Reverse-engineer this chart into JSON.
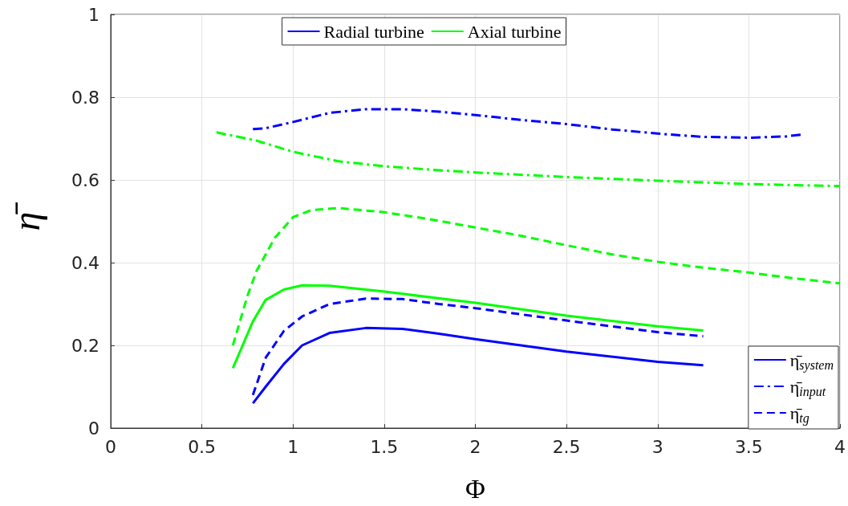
{
  "chart_data": {
    "type": "line",
    "xlabel": "Φ",
    "ylabel": "η̄",
    "xlim": [
      0,
      4
    ],
    "xticks": [
      0,
      0.5,
      1,
      1.5,
      2,
      2.5,
      3,
      3.5,
      4
    ],
    "ylim": [
      0,
      1
    ],
    "yticks": [
      0,
      0.2,
      0.4,
      0.6,
      0.8,
      1
    ],
    "grid": true,
    "marker": "none",
    "legend": [
      "top",
      "bottom right"
    ],
    "series": [
      {
        "color": "#0000ff",
        "line_style": "dashdot",
        "x": [
          0.78,
          0.85,
          1.0,
          1.2,
          1.4,
          1.6,
          1.8,
          2.0,
          2.25,
          2.5,
          2.75,
          3.0,
          3.25,
          3.5,
          3.7,
          3.8
        ],
        "values": [
          0.723,
          0.725,
          0.74,
          0.762,
          0.771,
          0.771,
          0.765,
          0.757,
          0.745,
          0.735,
          0.722,
          0.712,
          0.704,
          0.702,
          0.705,
          0.71
        ]
      },
      {
        "color": "#00ff00",
        "line_style": "dashdot",
        "x": [
          0.58,
          0.8,
          1.0,
          1.25,
          1.5,
          1.75,
          2.0,
          2.5,
          3.0,
          3.5,
          4.0
        ],
        "values": [
          0.715,
          0.695,
          0.668,
          0.645,
          0.633,
          0.625,
          0.618,
          0.607,
          0.598,
          0.59,
          0.585
        ]
      },
      {
        "color": "#00ff00",
        "line_style": "dashed",
        "x": [
          0.67,
          0.75,
          0.8,
          0.9,
          1.0,
          1.1,
          1.25,
          1.5,
          1.75,
          2.0,
          2.25,
          2.5,
          2.75,
          3.0,
          3.25,
          3.5,
          3.75,
          4.0
        ],
        "values": [
          0.2,
          0.32,
          0.38,
          0.46,
          0.51,
          0.527,
          0.532,
          0.522,
          0.505,
          0.485,
          0.465,
          0.442,
          0.42,
          0.402,
          0.388,
          0.376,
          0.362,
          0.35
        ]
      },
      {
        "color": "#00ff00",
        "line_style": "solid",
        "x": [
          0.67,
          0.78,
          0.85,
          0.95,
          1.05,
          1.2,
          1.5,
          2.0,
          2.5,
          3.0,
          3.25
        ],
        "values": [
          0.145,
          0.258,
          0.31,
          0.335,
          0.345,
          0.344,
          0.33,
          0.303,
          0.272,
          0.246,
          0.236
        ]
      },
      {
        "color": "#0000ff",
        "line_style": "dashed",
        "x": [
          0.78,
          0.85,
          0.95,
          1.05,
          1.2,
          1.4,
          1.6,
          1.8,
          2.0,
          2.5,
          3.0,
          3.25
        ],
        "values": [
          0.08,
          0.17,
          0.235,
          0.27,
          0.3,
          0.313,
          0.312,
          0.3,
          0.29,
          0.26,
          0.232,
          0.222
        ]
      },
      {
        "color": "#0000ff",
        "line_style": "solid",
        "x": [
          0.78,
          0.85,
          0.95,
          1.05,
          1.2,
          1.4,
          1.6,
          1.8,
          2.0,
          2.5,
          3.0,
          3.25
        ],
        "values": [
          0.06,
          0.1,
          0.155,
          0.2,
          0.23,
          0.242,
          0.24,
          0.228,
          0.215,
          0.185,
          0.16,
          0.152
        ]
      },
      {
        "name": "Radial turbine",
        "color": "#0000ff"
      },
      {
        "name": "Axial turbine",
        "color": "#00ff00"
      },
      {
        "name": "η̄$_{system}$",
        "color": "#0000ff",
        "line_style": "solid"
      },
      {
        "name": "η̄$_{input}$",
        "color": "#0000ff",
        "line_style": "dashdot"
      },
      {
        "name": "η̄$_{tg}$",
        "color": "#0000ff",
        "line_style": "dashed"
      }
    ]
  }
}
